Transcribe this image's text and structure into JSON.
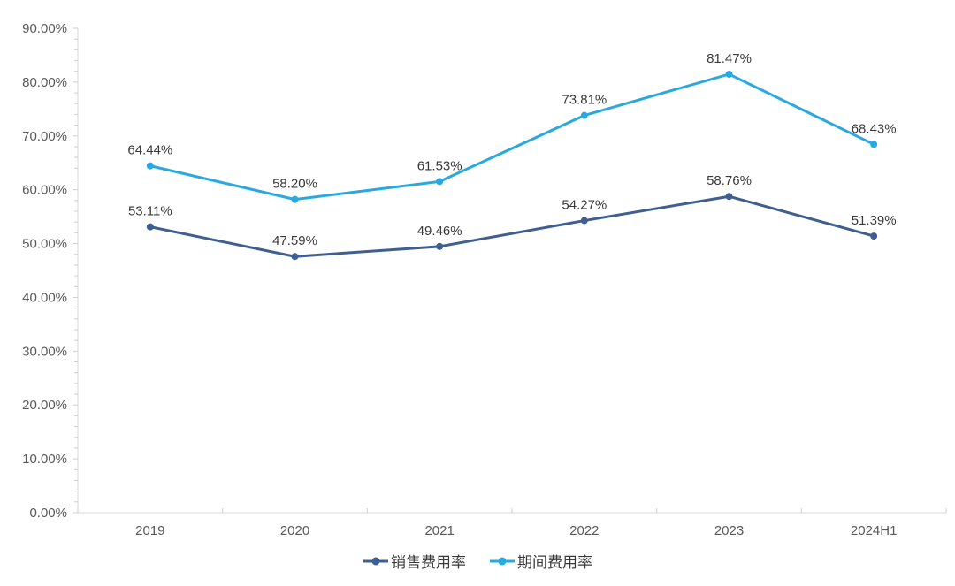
{
  "chart_data": {
    "type": "line",
    "categories": [
      "2019",
      "2020",
      "2021",
      "2022",
      "2023",
      "2024H1"
    ],
    "series": [
      {
        "name": "销售费用率",
        "color": "#3F5F91",
        "values": [
          53.11,
          47.59,
          49.46,
          54.27,
          58.76,
          51.39
        ],
        "data_labels": [
          "53.11%",
          "47.59%",
          "49.46%",
          "54.27%",
          "58.76%",
          "51.39%"
        ]
      },
      {
        "name": "期间费用率",
        "color": "#29A9E0",
        "values": [
          64.44,
          58.2,
          61.53,
          73.81,
          81.47,
          68.43
        ],
        "data_labels": [
          "64.44%",
          "58.20%",
          "61.53%",
          "73.81%",
          "81.47%",
          "68.43%"
        ]
      }
    ],
    "title": "",
    "xlabel": "",
    "ylabel": "",
    "ylim": [
      0,
      90
    ],
    "y_major_step": 10,
    "y_minor_step": 2,
    "y_tick_labels": [
      "0.00%",
      "10.00%",
      "20.00%",
      "30.00%",
      "40.00%",
      "50.00%",
      "60.00%",
      "70.00%",
      "80.00%",
      "90.00%"
    ],
    "grid": false,
    "legend_position": "bottom"
  },
  "colors": {
    "background": "#FFFFFF",
    "axis_line": "#D9D9D9",
    "tick": "#CFCFCF",
    "axis_label": "#595959",
    "data_label": "#3A3A3A",
    "series_dark": "#3F5F91",
    "series_light": "#29A9E0"
  }
}
